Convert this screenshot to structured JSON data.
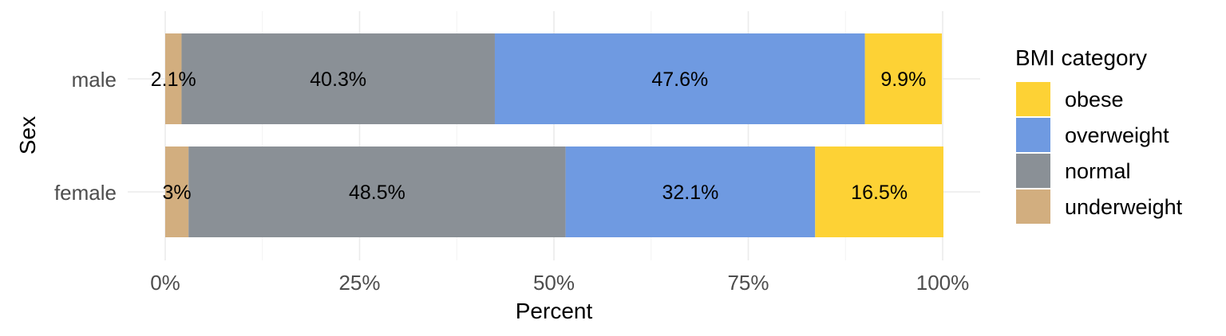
{
  "chart_data": {
    "type": "bar",
    "orientation": "horizontal",
    "stacked": true,
    "categories": [
      "male",
      "female"
    ],
    "xlabel": "Percent",
    "ylabel": "Sex",
    "xlim": [
      0,
      100
    ],
    "x_ticks": [
      "0%",
      "25%",
      "50%",
      "75%",
      "100%"
    ],
    "grid": true,
    "legend": {
      "title": "BMI category",
      "position": "right",
      "entries": [
        "obese",
        "overweight",
        "normal",
        "underweight"
      ]
    },
    "series": [
      {
        "name": "underweight",
        "color": "#D2AE7F",
        "values": [
          2.1,
          3.0
        ],
        "labels": [
          "2.1%",
          "3%"
        ]
      },
      {
        "name": "normal",
        "color": "#8A9096",
        "values": [
          40.3,
          48.5
        ],
        "labels": [
          "40.3%",
          "48.5%"
        ]
      },
      {
        "name": "overweight",
        "color": "#6F9AE1",
        "values": [
          47.6,
          32.1
        ],
        "labels": [
          "47.6%",
          "32.1%"
        ]
      },
      {
        "name": "obese",
        "color": "#FDD235",
        "values": [
          9.9,
          16.5
        ],
        "labels": [
          "9.9%",
          "16.5%"
        ]
      }
    ]
  }
}
